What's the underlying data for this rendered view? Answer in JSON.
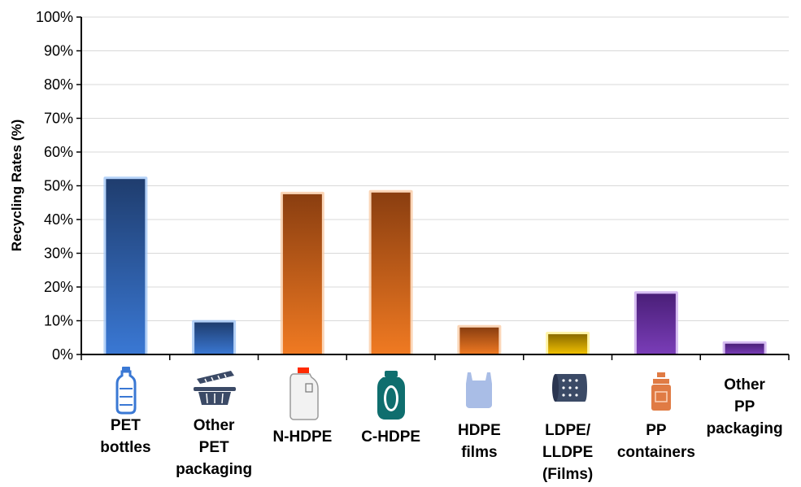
{
  "chart_data": {
    "type": "bar",
    "title": "",
    "ylabel": "Recycling Rates (%)",
    "xlabel": "",
    "ylim": [
      0,
      100
    ],
    "yticks": [
      "0%",
      "10%",
      "20%",
      "30%",
      "40%",
      "50%",
      "60%",
      "70%",
      "80%",
      "90%",
      "100%"
    ],
    "grid": true,
    "legend": "none",
    "categories": [
      "PET\nbottles",
      "Other\nPET\npackaging",
      "N-HDPE",
      "C-HDPE",
      "HDPE\nfilms",
      "LDPE/\nLLDPE\n(Films)",
      "PP\ncontainers",
      "Other\nPP\npackaging"
    ],
    "values": [
      52,
      9.5,
      47.5,
      48,
      8,
      6,
      18,
      3.2
    ],
    "bar_colors": [
      {
        "top": "#1f3d6e",
        "bottom": "#3a78d4",
        "glow": "#9cc3f5"
      },
      {
        "top": "#1f3d6e",
        "bottom": "#3a78d4",
        "glow": "#9cc3f5"
      },
      {
        "top": "#8a3e10",
        "bottom": "#f07a22",
        "glow": "#f9c8a0"
      },
      {
        "top": "#8a3e10",
        "bottom": "#f07a22",
        "glow": "#f9c8a0"
      },
      {
        "top": "#8a3e10",
        "bottom": "#f07a22",
        "glow": "#f9c8a0"
      },
      {
        "top": "#8a6b00",
        "bottom": "#f2c200",
        "glow": "#fff08a"
      },
      {
        "top": "#4a1f78",
        "bottom": "#7a3db8",
        "glow": "#c8a6ee"
      },
      {
        "top": "#4a1f78",
        "bottom": "#7a3db8",
        "glow": "#c8a6ee"
      }
    ],
    "icons": [
      "pet-bottle-icon",
      "pet-tray-icon",
      "hdpe-jug-icon",
      "hdpe-detergent-bottle-icon",
      "plastic-bag-icon",
      "film-roll-icon",
      "pp-container-icon",
      ""
    ]
  }
}
